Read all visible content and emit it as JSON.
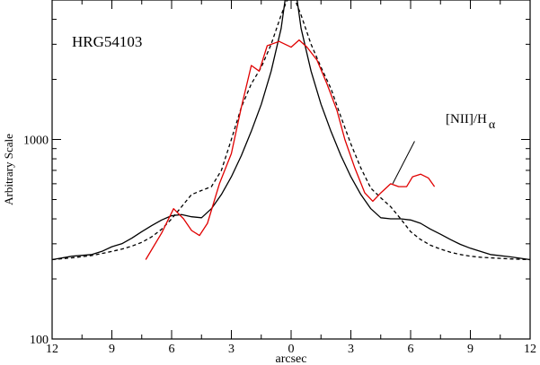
{
  "chart_data": {
    "type": "line",
    "title": "",
    "annotation_name": "HRG54103",
    "xlabel": "arcsec",
    "ylabel": "Arbitrary Scale",
    "xlim": [
      -12,
      12
    ],
    "ylim": [
      100,
      5000
    ],
    "yscale": "log",
    "grid": false,
    "x_ticks": [
      -12,
      -9,
      -6,
      -3,
      0,
      3,
      6,
      9,
      12
    ],
    "x_tick_labels": [
      "12",
      "9",
      "6",
      "3",
      "0",
      "3",
      "6",
      "9",
      "12"
    ],
    "y_major_ticks": [
      100,
      1000
    ],
    "y_minor_ticks": [
      200,
      300,
      400,
      500,
      600,
      700,
      800,
      900,
      2000,
      3000,
      4000
    ],
    "y_tick_labels": [
      "100",
      "1000"
    ],
    "ratio_label": {
      "base": "[NII]/H",
      "sub": "α",
      "pointer_from": [
        6.2,
        980
      ],
      "pointer_to": [
        5.1,
        600
      ]
    },
    "series": [
      {
        "style": "solid",
        "color": "#000000",
        "x": [
          -12,
          -11,
          -10,
          -9.5,
          -9,
          -8.5,
          -8,
          -7.5,
          -7,
          -6.5,
          -6,
          -5.5,
          -5,
          -4.5,
          -4,
          -3.5,
          -3,
          -2.5,
          -2,
          -1.5,
          -1,
          -0.5,
          -0.3,
          0.3,
          0.5,
          1,
          1.5,
          2,
          2.5,
          3,
          3.5,
          4,
          4.5,
          5,
          5.5,
          6,
          6.5,
          7,
          7.5,
          8,
          8.5,
          9,
          9.5,
          10,
          11,
          12
        ],
        "y": [
          250,
          260,
          265,
          275,
          290,
          300,
          320,
          345,
          370,
          395,
          415,
          420,
          410,
          405,
          450,
          530,
          650,
          830,
          1100,
          1500,
          2200,
          3600,
          5000,
          5000,
          3600,
          2200,
          1500,
          1100,
          830,
          650,
          530,
          450,
          405,
          400,
          400,
          395,
          380,
          355,
          335,
          315,
          298,
          285,
          275,
          265,
          258,
          250
        ]
      },
      {
        "style": "dashed",
        "color": "#000000",
        "x": [
          -12,
          -11,
          -10,
          -9.5,
          -9,
          -8.5,
          -8,
          -7.5,
          -7,
          -6.5,
          -6,
          -5.5,
          -5,
          -4.5,
          -4,
          -3.5,
          -3,
          -2.5,
          -2,
          -1.5,
          -1,
          -0.5,
          -0.2,
          0.2,
          0.5,
          1,
          1.5,
          2,
          2.5,
          3,
          3.5,
          4,
          4.5,
          5,
          5.5,
          6,
          6.5,
          7,
          7.5,
          8,
          8.5,
          9,
          9.5,
          10,
          11,
          12
        ],
        "y": [
          250,
          255,
          262,
          268,
          275,
          282,
          292,
          305,
          325,
          355,
          400,
          460,
          530,
          555,
          580,
          700,
          1000,
          1450,
          1900,
          2300,
          3000,
          4200,
          5000,
          5000,
          4200,
          3000,
          2300,
          1800,
          1300,
          950,
          720,
          570,
          510,
          460,
          400,
          345,
          315,
          295,
          282,
          272,
          265,
          260,
          257,
          255,
          252,
          250
        ]
      },
      {
        "style": "solid",
        "color": "#e00000",
        "x": [
          -7.3,
          -6.5,
          -5.9,
          -5.4,
          -5,
          -4.6,
          -4.2,
          -3.6,
          -3,
          -2.5,
          -2,
          -1.6,
          -1.2,
          -0.6,
          0,
          0.4,
          0.8,
          1.3,
          1.8,
          2.3,
          2.7,
          3.2,
          3.7,
          4.1,
          4.5,
          5.0,
          5.4,
          5.8,
          6.1,
          6.5,
          6.9,
          7.2
        ],
        "y": [
          250,
          340,
          450,
          400,
          350,
          330,
          380,
          600,
          850,
          1450,
          2350,
          2200,
          2950,
          3100,
          2900,
          3150,
          2900,
          2500,
          1900,
          1400,
          1000,
          720,
          540,
          490,
          540,
          600,
          580,
          580,
          650,
          670,
          640,
          580
        ]
      }
    ]
  }
}
